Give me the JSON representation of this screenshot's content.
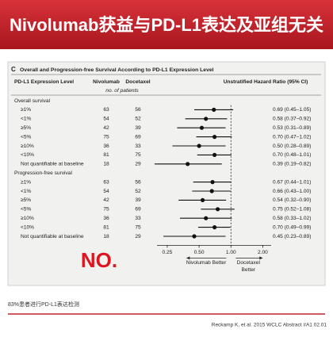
{
  "header": {
    "title": "Nivolumab获益与PD-L1表达及亚组无关"
  },
  "chart_data": {
    "type": "forest",
    "panel_label": "C",
    "title": "Overall and Progression-free Survival According to PD-L1 Expression Level",
    "column_headers": {
      "group": "PD-L1 Expression Level",
      "nivolumab": "Nivolumab",
      "docetaxel": "Docetaxel",
      "hr": "Unstratified Hazard Ratio (95% CI)",
      "subheader": "no. of patients"
    },
    "rows": [
      {
        "label": "Overall survival"
      },
      {
        "label": "≥1%",
        "nivolumab": 63,
        "docetaxel": 56,
        "hr": 0.69,
        "lower": 0.45,
        "upper": 1.05,
        "hr_label": "0.69 (0.45–1.05)"
      },
      {
        "label": "<1%",
        "nivolumab": 54,
        "docetaxel": 52,
        "hr": 0.58,
        "lower": 0.37,
        "upper": 0.92,
        "hr_label": "0.58 (0.37–0.92)"
      },
      {
        "label": "≥5%",
        "nivolumab": 42,
        "docetaxel": 39,
        "hr": 0.53,
        "lower": 0.31,
        "upper": 0.89,
        "hr_label": "0.53 (0.31–0.89)"
      },
      {
        "label": "<5%",
        "nivolumab": 75,
        "docetaxel": 69,
        "hr": 0.7,
        "lower": 0.47,
        "upper": 1.02,
        "hr_label": "0.70 (0.47–1.02)"
      },
      {
        "label": "≥10%",
        "nivolumab": 36,
        "docetaxel": 33,
        "hr": 0.5,
        "lower": 0.28,
        "upper": 0.89,
        "hr_label": "0.50 (0.28–0.89)"
      },
      {
        "label": "<10%",
        "nivolumab": 81,
        "docetaxel": 75,
        "hr": 0.7,
        "lower": 0.48,
        "upper": 1.01,
        "hr_label": "0.70 (0.48–1.01)"
      },
      {
        "label": "Not quantifiable at baseline",
        "nivolumab": 18,
        "docetaxel": 29,
        "hr": 0.39,
        "lower": 0.19,
        "upper": 0.82,
        "hr_label": "0.39 (0.19–0.82)"
      },
      {
        "label": "Progression-free survival"
      },
      {
        "label": "≥1%",
        "nivolumab": 63,
        "docetaxel": 56,
        "hr": 0.67,
        "lower": 0.44,
        "upper": 1.01,
        "hr_label": "0.67 (0.44–1.01)"
      },
      {
        "label": "<1%",
        "nivolumab": 54,
        "docetaxel": 52,
        "hr": 0.66,
        "lower": 0.43,
        "upper": 1.0,
        "hr_label": "0.66 (0.43–1.00)"
      },
      {
        "label": "≥5%",
        "nivolumab": 42,
        "docetaxel": 39,
        "hr": 0.54,
        "lower": 0.32,
        "upper": 0.9,
        "hr_label": "0.54 (0.32–0.90)"
      },
      {
        "label": "<5%",
        "nivolumab": 75,
        "docetaxel": 69,
        "hr": 0.75,
        "lower": 0.52,
        "upper": 1.08,
        "hr_label": "0.75 (0.52–1.08)"
      },
      {
        "label": "≥10%",
        "nivolumab": 36,
        "docetaxel": 33,
        "hr": 0.58,
        "lower": 0.33,
        "upper": 1.02,
        "hr_label": "0.58 (0.33–1.02)"
      },
      {
        "label": "<10%",
        "nivolumab": 81,
        "docetaxel": 75,
        "hr": 0.7,
        "lower": 0.49,
        "upper": 0.99,
        "hr_label": "0.70 (0.49–0.99)"
      },
      {
        "label": "Not quantifiable at baseline",
        "nivolumab": 18,
        "docetaxel": 29,
        "hr": 0.45,
        "lower": 0.23,
        "upper": 0.89,
        "hr_label": "0.45 (0.23–0.89)"
      }
    ],
    "xscale": "log",
    "xlim": [
      0.2,
      2.4
    ],
    "xticks": [
      {
        "value": 0.25,
        "label": "0.25"
      },
      {
        "value": 0.5,
        "label": "0.50"
      },
      {
        "value": 1,
        "label": "1.00"
      },
      {
        "value": 2,
        "label": "2.00"
      }
    ],
    "reference_line": 1,
    "left_label": "Nivolumab Better",
    "right_label": [
      "Docetaxel",
      "Better"
    ],
    "annotation": "NO.",
    "color": "#111111"
  },
  "footer": {
    "note": "83%患者进行PD-L1表达检测",
    "citation": "Reckamp K, et al. 2015 WCLC Abstract #A1 02.01"
  }
}
